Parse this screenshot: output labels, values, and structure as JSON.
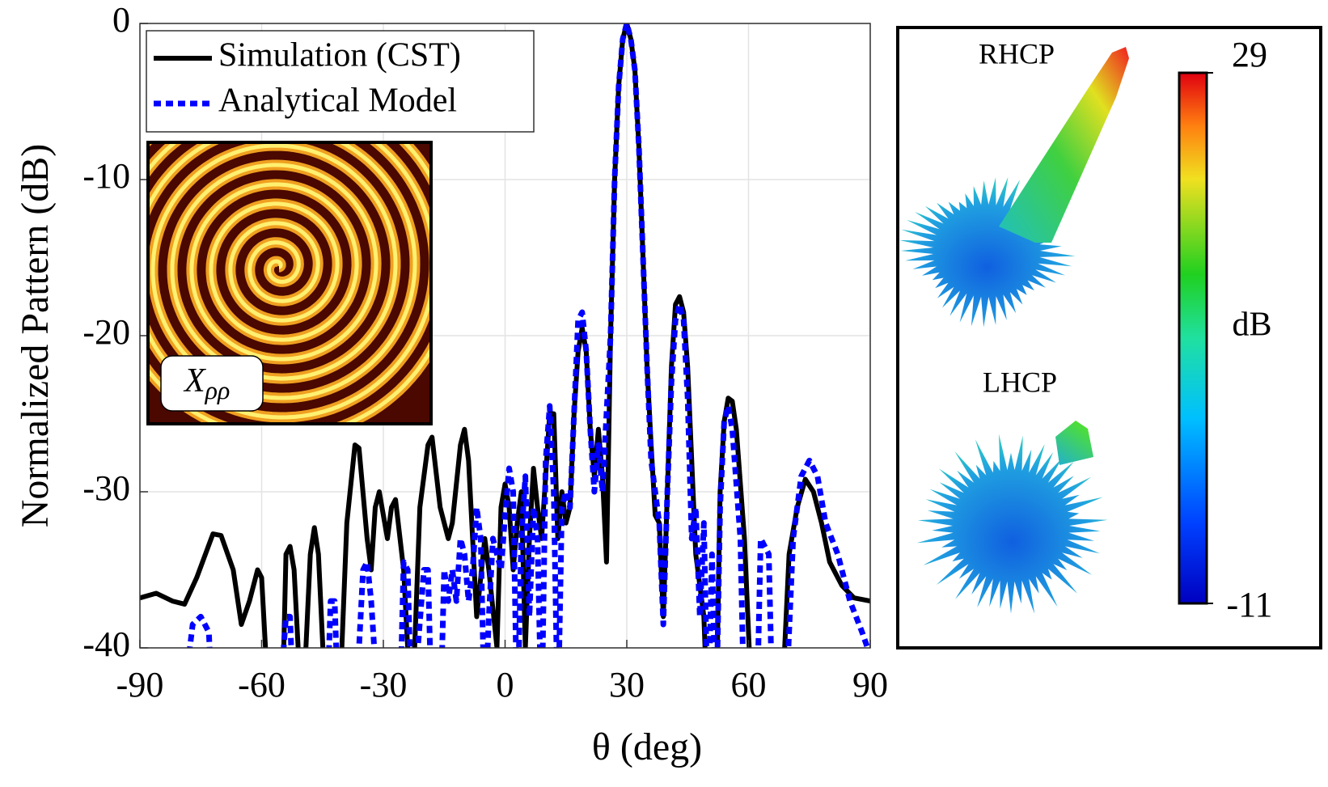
{
  "chart_data": {
    "type": "line",
    "xlabel": "θ (deg)",
    "ylabel": "Normalized Pattern (dB)",
    "xlim": [
      -90,
      90
    ],
    "xticks": [
      -90,
      -60,
      -30,
      0,
      30,
      60,
      90
    ],
    "ylim": [
      -40,
      0
    ],
    "yticks": [
      -40,
      -30,
      -20,
      -10,
      0
    ],
    "grid": true,
    "legend": "upper left",
    "series": [
      {
        "name": "Simulation (CST)",
        "color": "#000000",
        "style": "solid",
        "x": [
          -90,
          -86,
          -82,
          -79,
          -76,
          -72,
          -70,
          -67,
          -65,
          -63,
          -61,
          -60,
          -58,
          -55,
          -54,
          -53,
          -52,
          -50,
          -48,
          -47,
          -46,
          -44,
          -41,
          -39,
          -37,
          -36,
          -34,
          -33,
          -32,
          -31,
          -30,
          -29,
          -28,
          -27,
          -25,
          -23,
          -21,
          -19,
          -18,
          -16,
          -14,
          -13,
          -11,
          -10,
          -9,
          -7,
          -5,
          -4,
          -2,
          -1,
          0,
          1,
          2,
          3,
          4,
          5,
          6,
          7,
          8,
          9,
          11,
          12,
          13,
          14,
          15,
          16,
          17,
          18,
          19,
          20,
          21,
          22,
          23,
          24,
          25,
          26,
          27,
          28,
          29,
          30,
          31,
          32,
          33,
          34,
          35,
          36,
          37,
          38,
          39,
          40,
          41,
          42,
          43,
          44,
          45,
          46,
          47,
          48,
          49,
          50,
          52,
          53,
          54,
          55,
          56,
          57,
          59,
          61,
          65,
          68,
          70,
          72,
          74,
          76,
          78,
          80,
          83,
          86,
          90
        ],
        "values": [
          -36.8,
          -36.5,
          -37,
          -37.2,
          -35.5,
          -32.7,
          -32.8,
          -35,
          -38.5,
          -37,
          -35,
          -35.5,
          -45,
          -45,
          -34,
          -33.5,
          -35,
          -45,
          -34,
          -32.3,
          -34,
          -45,
          -45,
          -32,
          -27,
          -27.2,
          -33,
          -35,
          -31,
          -30,
          -31.5,
          -33,
          -31,
          -30.5,
          -35,
          -45,
          -31,
          -27,
          -26.5,
          -31,
          -33,
          -32,
          -27,
          -26,
          -28,
          -38,
          -33,
          -35,
          -40,
          -31,
          -29.5,
          -31,
          -35,
          -32,
          -30,
          -40,
          -33,
          -28.5,
          -31,
          -33,
          -25,
          -25,
          -33,
          -30,
          -32,
          -31,
          -25,
          -21,
          -19.5,
          -21,
          -26,
          -29,
          -26,
          -29,
          -34.5,
          -20,
          -10,
          -4,
          -1,
          0,
          -1,
          -3,
          -8,
          -15,
          -22,
          -27,
          -31.5,
          -32,
          -38,
          -30,
          -22,
          -18,
          -17.5,
          -18.5,
          -22,
          -28,
          -34,
          -36,
          -38,
          -45,
          -45,
          -30,
          -25.5,
          -24,
          -24.2,
          -26,
          -33,
          -45,
          -45,
          -45,
          -34,
          -31,
          -29.2,
          -30,
          -32,
          -34.5,
          -36,
          -36.8,
          -37
        ]
      },
      {
        "name": "Analytical Model",
        "color": "#0000ff",
        "style": "dotted",
        "x": [
          -80,
          -77,
          -75,
          -73,
          -72,
          -56,
          -54,
          -53,
          -52,
          -44,
          -43,
          -42,
          -41,
          -37,
          -35,
          -34,
          -33,
          -31,
          -26,
          -25,
          -24,
          -23,
          -20,
          -19,
          -18,
          -16,
          -15,
          -14,
          -13,
          -12,
          -11,
          -10,
          -9,
          -8,
          -7,
          -6,
          -5,
          -4,
          -3,
          -2,
          -1,
          0,
          1,
          2,
          3,
          4,
          5,
          6,
          7,
          8,
          9,
          10,
          11,
          12,
          13,
          14,
          15,
          16,
          17,
          18,
          19,
          20,
          21,
          22,
          23,
          24,
          25,
          26,
          27,
          28,
          29,
          30,
          31,
          32,
          33,
          34,
          35,
          36,
          37,
          38,
          39,
          40,
          41,
          42,
          43,
          44,
          45,
          46,
          47,
          48,
          49,
          50,
          51,
          52,
          53,
          54,
          55,
          56,
          58,
          59,
          62,
          63,
          65,
          66,
          69,
          71,
          73,
          75,
          77,
          79,
          82,
          85,
          88,
          90
        ],
        "values": [
          -45,
          -38.5,
          -38,
          -39,
          -45,
          -45,
          -38,
          -38,
          -45,
          -45,
          -37,
          -37,
          -45,
          -45,
          -35,
          -34.5,
          -37,
          -45,
          -45,
          -34.5,
          -35,
          -45,
          -35,
          -35,
          -45,
          -45,
          -35,
          -37,
          -35,
          -37,
          -33,
          -34,
          -37,
          -35,
          -31,
          -33,
          -45,
          -38,
          -33,
          -34,
          -35,
          -31.5,
          -28.5,
          -30,
          -45,
          -33,
          -29,
          -38,
          -31,
          -33,
          -45,
          -28,
          -24.5,
          -30,
          -45,
          -31,
          -30,
          -31,
          -25,
          -19,
          -18.5,
          -21,
          -26,
          -30,
          -27,
          -30,
          -25,
          -20,
          -10,
          -4,
          -1,
          0,
          -1,
          -3,
          -8,
          -15,
          -22,
          -28,
          -30,
          -32,
          -38.5,
          -30,
          -23,
          -19,
          -18,
          -19,
          -24,
          -33,
          -31,
          -38,
          -32,
          -45,
          -34,
          -45,
          -31,
          -25.5,
          -24.5,
          -26,
          -33,
          -45,
          -45,
          -33,
          -34,
          -45,
          -45,
          -33,
          -29,
          -28,
          -29,
          -32,
          -34,
          -37,
          -39,
          -40.5
        ]
      }
    ],
    "inset": {
      "symbol": "X",
      "subscript": "ρρ"
    },
    "panel": {
      "top_label": "RHCP",
      "bottom_label": "LHCP",
      "colorbar": {
        "lim": [
          -11,
          29
        ],
        "ticks": [
          -11,
          29
        ],
        "label": "dB",
        "colormap": "jet"
      }
    }
  }
}
